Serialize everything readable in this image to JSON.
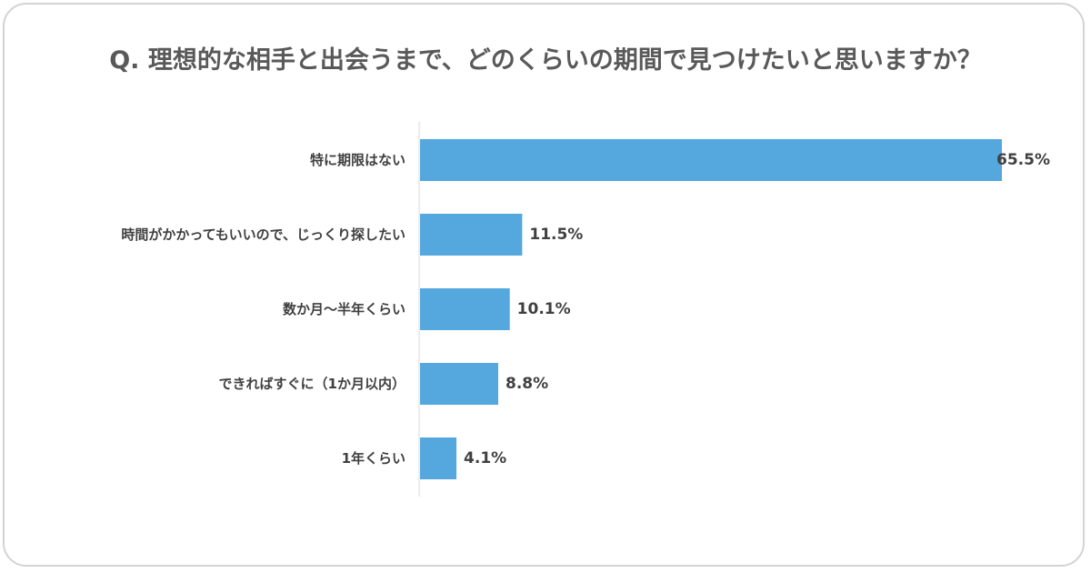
{
  "chart_data": {
    "type": "bar",
    "orientation": "horizontal",
    "title": "Q. 理想的な相手と出会うまで、どのくらいの期間で見つけたいと思いますか？",
    "categories": [
      "特に期限はない",
      "時間がかかってもいいので、じっくり探したい",
      "数か月～半年くらい",
      "できればすぐに（1か月以内）",
      "1年くらい"
    ],
    "values": [
      65.5,
      11.5,
      10.1,
      8.8,
      4.1
    ],
    "value_labels": [
      "65.5%",
      "11.5%",
      "10.1%",
      "8.8%",
      "4.1%"
    ],
    "unit": "%",
    "xlim": [
      0,
      65.5
    ],
    "grid": false,
    "legend": "none",
    "colors": {
      "bar": "#55a8dd",
      "axis": "#d9d9d9",
      "text": "#404040",
      "title": "#595959",
      "border": "#d3d3d3"
    }
  }
}
